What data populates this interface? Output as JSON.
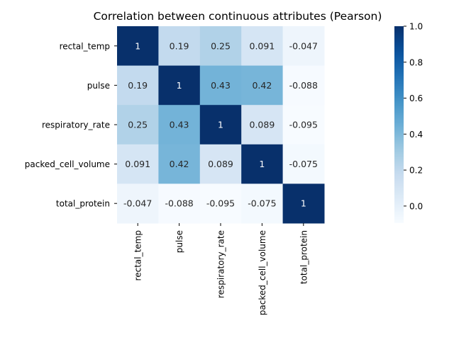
{
  "chart_data": {
    "type": "heatmap",
    "title": "Correlation between continuous attributes (Pearson)",
    "xlabel": "",
    "ylabel": "",
    "rows": [
      "rectal_temp",
      "pulse",
      "respiratory_rate",
      "packed_cell_volume",
      "total_protein"
    ],
    "columns": [
      "rectal_temp",
      "pulse",
      "respiratory_rate",
      "packed_cell_volume",
      "total_protein"
    ],
    "values": [
      [
        1,
        0.19,
        0.25,
        0.091,
        -0.047
      ],
      [
        0.19,
        1,
        0.43,
        0.42,
        -0.088
      ],
      [
        0.25,
        0.43,
        1,
        0.089,
        -0.095
      ],
      [
        0.091,
        0.42,
        0.089,
        1,
        -0.075
      ],
      [
        -0.047,
        -0.088,
        -0.095,
        -0.075,
        1
      ]
    ],
    "cell_labels": [
      [
        "1",
        "0.19",
        "0.25",
        "0.091",
        "-0.047"
      ],
      [
        "0.19",
        "1",
        "0.43",
        "0.42",
        "-0.088"
      ],
      [
        "0.25",
        "0.43",
        "1",
        "0.089",
        "-0.095"
      ],
      [
        "0.091",
        "0.42",
        "0.089",
        "1",
        "-0.075"
      ],
      [
        "-0.047",
        "-0.088",
        "-0.095",
        "-0.075",
        "1"
      ]
    ],
    "colormap": "Blues",
    "vmin": -0.095,
    "vmax": 1,
    "colorbar": {
      "ticks": [
        0.0,
        0.2,
        0.4,
        0.6,
        0.8,
        1.0
      ],
      "tick_labels": [
        "0.0",
        "0.2",
        "0.4",
        "0.6",
        "0.8",
        "1.0"
      ]
    },
    "grid": false,
    "legend": "colorbar-right"
  }
}
